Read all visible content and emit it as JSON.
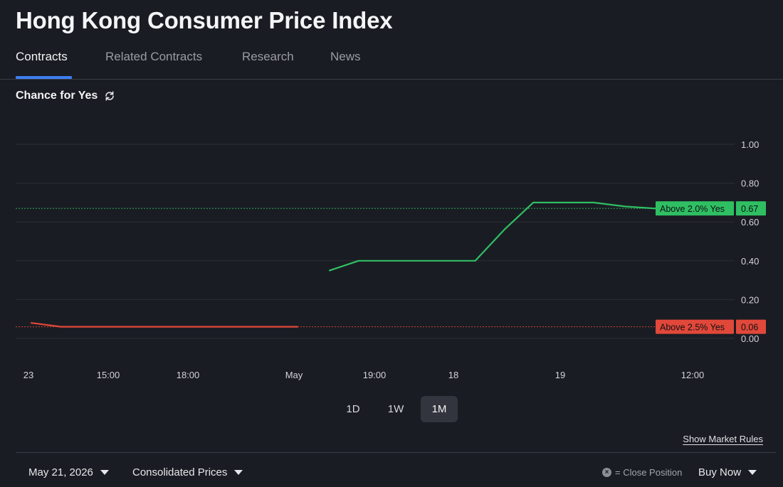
{
  "page": {
    "title": "Hong Kong Consumer Price Index"
  },
  "tabs": [
    {
      "label": "Contracts",
      "active": true
    },
    {
      "label": "Related Contracts",
      "active": false
    },
    {
      "label": "Research",
      "active": false
    },
    {
      "label": "News",
      "active": false
    }
  ],
  "chart_header": {
    "label": "Chance for Yes",
    "icon": "refresh-icon"
  },
  "colors": {
    "green": "#2fbf62",
    "red": "#e1483a",
    "background": "#1a1c23",
    "accent": "#3d7ff0"
  },
  "chart_data": {
    "type": "line",
    "title": "",
    "xlabel": "",
    "ylabel": "",
    "ylim": [
      0,
      1
    ],
    "yticks": [
      "1.00",
      "0.80",
      "0.60",
      "0.40",
      "0.20",
      "0.00"
    ],
    "x_tick_labels": [
      "23",
      "15:00",
      "18:00",
      "May",
      "19:00",
      "18",
      "19",
      "12:00"
    ],
    "grid": true,
    "series": [
      {
        "name": "Above 2.0% Yes",
        "color": "#2fbf62",
        "last_value": "0.67",
        "points": [
          {
            "t": 0.421,
            "v": 0.35
          },
          {
            "t": 0.458,
            "v": 0.4
          },
          {
            "t": 0.607,
            "v": 0.4
          },
          {
            "t": 0.644,
            "v": 0.56
          },
          {
            "t": 0.681,
            "v": 0.7
          },
          {
            "t": 0.758,
            "v": 0.7
          },
          {
            "t": 0.798,
            "v": 0.68
          },
          {
            "t": 0.835,
            "v": 0.67
          },
          {
            "t": 0.931,
            "v": 0.67
          }
        ]
      },
      {
        "name": "Above 2.5% Yes",
        "color": "#e1483a",
        "last_value": "0.06",
        "points": [
          {
            "t": 0.04,
            "v": 0.08
          },
          {
            "t": 0.078,
            "v": 0.06
          },
          {
            "t": 0.38,
            "v": 0.06
          }
        ]
      }
    ]
  },
  "range_buttons": [
    {
      "label": "1D",
      "active": false
    },
    {
      "label": "1W",
      "active": false
    },
    {
      "label": "1M",
      "active": true
    }
  ],
  "show_rules_label": "Show Market Rules",
  "bottom_bar": {
    "date": "May 21, 2026",
    "prices": "Consolidated Prices",
    "close_legend_icon": "close-icon",
    "close_legend_symbol": "×",
    "close_legend": "= Close Position",
    "buy": "Buy Now"
  }
}
